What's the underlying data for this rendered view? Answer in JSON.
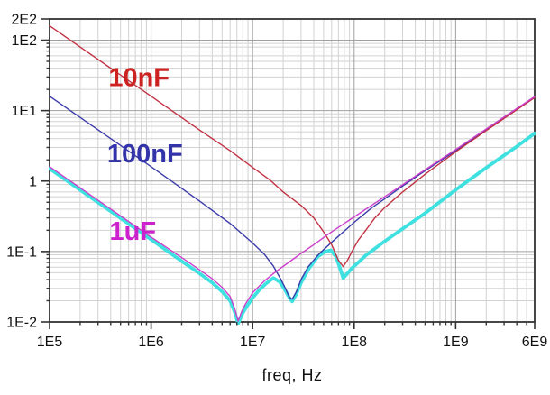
{
  "chart_data": {
    "type": "line",
    "title": "",
    "xlabel": "freq, Hz",
    "ylabel": "",
    "x_scale": "log",
    "y_scale": "log",
    "xlim": [
      100000.0,
      6000000000.0
    ],
    "ylim": [
      0.01,
      200.0
    ],
    "grid": {
      "minor": true,
      "major": true,
      "minor_color": "#d2d2d2",
      "major_color": "#a0a0a0",
      "frame_color": "#333333"
    },
    "x_ticks": [
      {
        "label": "1E5",
        "value": 100000.0
      },
      {
        "label": "1E6",
        "value": 1000000.0
      },
      {
        "label": "1E7",
        "value": 10000000.0
      },
      {
        "label": "1E8",
        "value": 100000000.0
      },
      {
        "label": "1E9",
        "value": 1000000000.0
      },
      {
        "label": "6E9",
        "value": 6000000000.0
      }
    ],
    "y_ticks": [
      {
        "label": "2E2",
        "value": 200.0
      },
      {
        "label": "1E2",
        "value": 100.0
      },
      {
        "label": "1E1",
        "value": 10.0
      },
      {
        "label": "1",
        "value": 1
      },
      {
        "label": "1E-1",
        "value": 0.1
      },
      {
        "label": "1E-2",
        "value": 0.01
      }
    ],
    "series": [
      {
        "name": "parallel combination (thick cyan, unlabeled)",
        "color": "#3fe0e0",
        "width": 3.8,
        "points": [
          [
            100000.0,
            1.5
          ],
          [
            1000000.0,
            0.148
          ],
          [
            2000000.0,
            0.073
          ],
          [
            3000000.0,
            0.049
          ],
          [
            4000000.0,
            0.036
          ],
          [
            5000000.0,
            0.027
          ],
          [
            6000000.0,
            0.02
          ],
          [
            6600000.0,
            0.0142
          ],
          [
            7200000.0,
            0.0095
          ],
          [
            7900000.0,
            0.013
          ],
          [
            8600000.0,
            0.016
          ],
          [
            10000000.0,
            0.022
          ],
          [
            11500000.0,
            0.028
          ],
          [
            13500000.0,
            0.035
          ],
          [
            16000000.0,
            0.042
          ],
          [
            18500000.0,
            0.037
          ],
          [
            21000000.0,
            0.028
          ],
          [
            23000000.0,
            0.022
          ],
          [
            24500000.0,
            0.0195
          ],
          [
            27000000.0,
            0.025
          ],
          [
            30000000.0,
            0.036
          ],
          [
            36000000.0,
            0.058
          ],
          [
            44000000.0,
            0.085
          ],
          [
            52000000.0,
            0.1
          ],
          [
            59000000.0,
            0.104
          ],
          [
            66000000.0,
            0.085
          ],
          [
            72000000.0,
            0.06
          ],
          [
            78000000.0,
            0.042
          ],
          [
            85000000.0,
            0.048
          ],
          [
            95000000.0,
            0.058
          ],
          [
            110000000.0,
            0.07
          ],
          [
            130000000.0,
            0.088
          ],
          [
            160000000.0,
            0.11
          ],
          [
            200000000.0,
            0.14
          ],
          [
            300000000.0,
            0.21
          ],
          [
            500000000.0,
            0.35
          ],
          [
            1000000000.0,
            0.75
          ],
          [
            2000000000.0,
            1.55
          ],
          [
            4000000000.0,
            3.1
          ],
          [
            6000000000.0,
            4.75
          ]
        ]
      },
      {
        "name": "100nF",
        "color": "#3c3caa",
        "width": 1.4,
        "points": [
          [
            100000.0,
            16
          ],
          [
            1000000.0,
            1.6
          ],
          [
            3000000.0,
            0.52
          ],
          [
            6000000.0,
            0.25
          ],
          [
            10000000.0,
            0.132
          ],
          [
            13000000.0,
            0.092
          ],
          [
            16000000.0,
            0.062
          ],
          [
            19000000.0,
            0.04
          ],
          [
            21000000.0,
            0.03
          ],
          [
            23000000.0,
            0.0225
          ],
          [
            24500000.0,
            0.021
          ],
          [
            27000000.0,
            0.027
          ],
          [
            30000000.0,
            0.04
          ],
          [
            35000000.0,
            0.06
          ],
          [
            45000000.0,
            0.092
          ],
          [
            60000000.0,
            0.135
          ],
          [
            80000000.0,
            0.195
          ],
          [
            100000000.0,
            0.26
          ],
          [
            150000000.0,
            0.42
          ],
          [
            200000000.0,
            0.56
          ],
          [
            300000000.0,
            0.85
          ],
          [
            500000000.0,
            1.4
          ],
          [
            1000000000.0,
            2.7
          ],
          [
            2000000000.0,
            5.3
          ],
          [
            6000000000.0,
            15.4
          ]
        ]
      },
      {
        "name": "10nF",
        "color": "#c23345",
        "width": 1.4,
        "points": [
          [
            100000.0,
            160
          ],
          [
            1000000.0,
            16
          ],
          [
            3000000.0,
            5.3
          ],
          [
            6000000.0,
            2.7
          ],
          [
            10000000.0,
            1.56
          ],
          [
            15000000.0,
            1.02
          ],
          [
            20000000.0,
            0.7
          ],
          [
            30000000.0,
            0.45
          ],
          [
            40000000.0,
            0.3
          ],
          [
            50000000.0,
            0.19
          ],
          [
            60000000.0,
            0.125
          ],
          [
            70000000.0,
            0.075
          ],
          [
            78000000.0,
            0.061
          ],
          [
            86000000.0,
            0.075
          ],
          [
            95000000.0,
            0.1
          ],
          [
            110000000.0,
            0.145
          ],
          [
            130000000.0,
            0.2
          ],
          [
            160000000.0,
            0.3
          ],
          [
            200000000.0,
            0.42
          ],
          [
            300000000.0,
            0.7
          ],
          [
            500000000.0,
            1.25
          ],
          [
            1000000000.0,
            2.6
          ],
          [
            2000000000.0,
            5.2
          ],
          [
            6000000000.0,
            15.3
          ]
        ]
      },
      {
        "name": "1uF",
        "color": "#cc3fcc",
        "width": 1.4,
        "points": [
          [
            100000.0,
            1.6
          ],
          [
            1000000.0,
            0.16
          ],
          [
            2000000.0,
            0.082
          ],
          [
            3000000.0,
            0.055
          ],
          [
            4000000.0,
            0.041
          ],
          [
            5000000.0,
            0.031
          ],
          [
            6000000.0,
            0.023
          ],
          [
            6600000.0,
            0.016
          ],
          [
            7200000.0,
            0.0103
          ],
          [
            7800000.0,
            0.014
          ],
          [
            8500000.0,
            0.018
          ],
          [
            10000000.0,
            0.026
          ],
          [
            13000000.0,
            0.038
          ],
          [
            17000000.0,
            0.052
          ],
          [
            22000000.0,
            0.068
          ],
          [
            30000000.0,
            0.094
          ],
          [
            40000000.0,
            0.125
          ],
          [
            60000000.0,
            0.19
          ],
          [
            100000000.0,
            0.31
          ],
          [
            200000000.0,
            0.6
          ],
          [
            500000000.0,
            1.45
          ],
          [
            1000000000.0,
            2.8
          ],
          [
            2000000000.0,
            5.5
          ],
          [
            6000000000.0,
            15.8
          ]
        ]
      }
    ],
    "annotations": [
      {
        "text": "10nF",
        "x": 760000.0,
        "y": 30,
        "color": "#cc2222"
      },
      {
        "text": "100nF",
        "x": 870000.0,
        "y": 2.48,
        "color": "#3333aa"
      },
      {
        "text": "1uF",
        "x": 660000.0,
        "y": 0.196,
        "color": "#cc22cc"
      }
    ],
    "legend_position": "labels on curves"
  },
  "palette": {
    "background": "#ffffff",
    "tick_text": "#111111",
    "axis_frame": "#333333"
  }
}
